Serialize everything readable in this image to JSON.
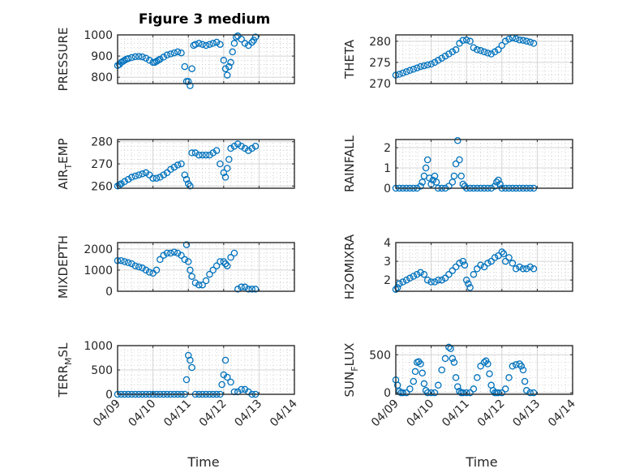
{
  "figure": {
    "title": "Figure 3 medium",
    "xlabel": "Time",
    "colors": {
      "marker": "#0072bd",
      "axes": "#262626",
      "grid": "#d4d4d4"
    }
  },
  "chart_data": [
    {
      "type": "scatter",
      "ylabel_main": "PRESSURE",
      "ylabel_sub": "",
      "ylabel_suffix": "",
      "ylim": [
        770,
        1000
      ],
      "yticks": [
        800,
        900,
        1000
      ],
      "ytick_labels": [
        "800",
        "900",
        "1000"
      ],
      "xlim": [
        0,
        5
      ],
      "xticks": [
        0,
        1,
        2,
        3,
        4,
        5
      ],
      "xtick_labels": [
        "04/09",
        "04/10",
        "04/11",
        "04/12",
        "04/13",
        "04/14"
      ],
      "show_xticklabels": false,
      "x": [
        0,
        0.05,
        0.1,
        0.15,
        0.2,
        0.25,
        0.3,
        0.4,
        0.5,
        0.6,
        0.7,
        0.8,
        0.9,
        1.0,
        1.05,
        1.1,
        1.15,
        1.2,
        1.3,
        1.4,
        1.5,
        1.6,
        1.7,
        1.8,
        1.9,
        1.95,
        2.0,
        2.05,
        2.1,
        2.15,
        2.2,
        2.3,
        2.4,
        2.5,
        2.6,
        2.7,
        2.8,
        2.9,
        3.0,
        3.05,
        3.1,
        3.15,
        3.2,
        3.25,
        3.3,
        3.35,
        3.4,
        3.5,
        3.6,
        3.7,
        3.8,
        3.85,
        3.9
      ],
      "y": [
        855,
        860,
        870,
        875,
        880,
        885,
        888,
        893,
        897,
        898,
        896,
        890,
        880,
        870,
        870,
        875,
        880,
        885,
        895,
        905,
        910,
        915,
        920,
        915,
        850,
        780,
        780,
        760,
        840,
        950,
        955,
        960,
        955,
        950,
        955,
        960,
        965,
        955,
        880,
        840,
        810,
        850,
        870,
        920,
        960,
        990,
        995,
        980,
        960,
        950,
        965,
        975,
        990
      ]
    },
    {
      "type": "scatter",
      "ylabel_main": "THETA",
      "ylabel_sub": "",
      "ylabel_suffix": "",
      "ylim": [
        270,
        281.5
      ],
      "yticks": [
        270,
        275,
        280
      ],
      "ytick_labels": [
        "270",
        "275",
        "280"
      ],
      "xlim": [
        0,
        5
      ],
      "xticks": [
        0,
        1,
        2,
        3,
        4,
        5
      ],
      "xtick_labels": [
        "04/09",
        "04/10",
        "04/11",
        "04/12",
        "04/13",
        "04/14"
      ],
      "show_xticklabels": false,
      "x": [
        0,
        0.1,
        0.2,
        0.3,
        0.4,
        0.5,
        0.6,
        0.7,
        0.8,
        0.9,
        1.0,
        1.1,
        1.2,
        1.3,
        1.4,
        1.5,
        1.6,
        1.7,
        1.8,
        1.9,
        2.0,
        2.1,
        2.2,
        2.3,
        2.4,
        2.5,
        2.6,
        2.7,
        2.8,
        2.9,
        3.0,
        3.1,
        3.2,
        3.3,
        3.4,
        3.5,
        3.6,
        3.7,
        3.8,
        3.9
      ],
      "y": [
        272,
        272.2,
        272.5,
        272.8,
        273.1,
        273.4,
        273.7,
        274,
        274.2,
        274.4,
        274.6,
        275,
        275.5,
        276,
        276.5,
        277,
        277.5,
        278,
        279.5,
        280.2,
        280.3,
        280,
        278.5,
        278,
        277.8,
        277.5,
        277.2,
        277,
        277.5,
        278,
        279,
        280,
        280.5,
        280.8,
        280.6,
        280.3,
        280.2,
        280,
        279.8,
        279.5
      ]
    },
    {
      "type": "scatter",
      "ylabel_main": "AIR",
      "ylabel_sub": "T",
      "ylabel_suffix": "EMP",
      "ylim": [
        259,
        281
      ],
      "yticks": [
        260,
        270,
        280
      ],
      "ytick_labels": [
        "260",
        "270",
        "280"
      ],
      "xlim": [
        0,
        5
      ],
      "xticks": [
        0,
        1,
        2,
        3,
        4,
        5
      ],
      "xtick_labels": [
        "04/09",
        "04/10",
        "04/11",
        "04/12",
        "04/13",
        "04/14"
      ],
      "show_xticklabels": false,
      "x": [
        0,
        0.05,
        0.1,
        0.2,
        0.3,
        0.4,
        0.5,
        0.6,
        0.7,
        0.8,
        0.9,
        1.0,
        1.1,
        1.2,
        1.3,
        1.4,
        1.5,
        1.6,
        1.7,
        1.8,
        1.9,
        1.95,
        2.0,
        2.05,
        2.1,
        2.2,
        2.3,
        2.4,
        2.5,
        2.6,
        2.7,
        2.8,
        2.9,
        3.0,
        3.05,
        3.1,
        3.15,
        3.2,
        3.3,
        3.4,
        3.5,
        3.6,
        3.7,
        3.8,
        3.9
      ],
      "y": [
        260,
        260.5,
        261,
        262,
        263,
        264,
        264.5,
        265,
        265.5,
        266,
        265,
        263.5,
        263.5,
        264,
        265,
        266,
        267.5,
        268.5,
        269.5,
        270,
        265,
        263,
        261,
        260,
        275,
        275,
        274,
        274,
        274,
        274,
        275,
        276,
        270,
        266,
        264,
        268,
        272,
        277,
        278,
        279,
        278,
        277,
        276,
        277,
        278
      ]
    },
    {
      "type": "scatter",
      "ylabel_main": "RAINFALL",
      "ylabel_sub": "",
      "ylabel_suffix": "",
      "ylim": [
        0,
        2.4
      ],
      "yticks": [
        0,
        1,
        2
      ],
      "ytick_labels": [
        "0",
        "1",
        "2"
      ],
      "xlim": [
        0,
        5
      ],
      "xticks": [
        0,
        1,
        2,
        3,
        4,
        5
      ],
      "xtick_labels": [
        "04/09",
        "04/10",
        "04/11",
        "04/12",
        "04/13",
        "04/14"
      ],
      "show_xticklabels": false,
      "x": [
        0,
        0.1,
        0.2,
        0.3,
        0.4,
        0.5,
        0.6,
        0.7,
        0.75,
        0.8,
        0.85,
        0.9,
        0.95,
        1.0,
        1.05,
        1.1,
        1.15,
        1.2,
        1.3,
        1.4,
        1.5,
        1.6,
        1.65,
        1.7,
        1.75,
        1.8,
        1.85,
        1.9,
        1.95,
        2.0,
        2.1,
        2.2,
        2.3,
        2.4,
        2.5,
        2.6,
        2.7,
        2.8,
        2.85,
        2.9,
        2.95,
        3.0,
        3.1,
        3.2,
        3.3,
        3.4,
        3.5,
        3.6,
        3.7,
        3.8,
        3.9
      ],
      "y": [
        0,
        0,
        0,
        0,
        0,
        0,
        0,
        0.1,
        0.3,
        0.6,
        1.0,
        1.4,
        0.5,
        0.2,
        0.4,
        0.6,
        0.3,
        0,
        0,
        0,
        0.1,
        0.3,
        0.6,
        1.2,
        2.35,
        1.4,
        0.6,
        0.2,
        0.1,
        0,
        0,
        0,
        0,
        0,
        0,
        0,
        0,
        0.1,
        0.3,
        0.4,
        0.2,
        0,
        0,
        0,
        0,
        0,
        0,
        0,
        0,
        0,
        0
      ]
    },
    {
      "type": "scatter",
      "ylabel_main": "MIXDEPTH",
      "ylabel_sub": "",
      "ylabel_suffix": "",
      "ylim": [
        0,
        2300
      ],
      "yticks": [
        0,
        1000,
        2000
      ],
      "ytick_labels": [
        "0",
        "1000",
        "2000"
      ],
      "xlim": [
        0,
        5
      ],
      "xticks": [
        0,
        1,
        2,
        3,
        4,
        5
      ],
      "xtick_labels": [
        "04/09",
        "04/10",
        "04/11",
        "04/12",
        "04/13",
        "04/14"
      ],
      "show_xticklabels": false,
      "x": [
        0,
        0.1,
        0.2,
        0.3,
        0.4,
        0.5,
        0.6,
        0.7,
        0.8,
        0.9,
        1.0,
        1.1,
        1.2,
        1.3,
        1.4,
        1.5,
        1.6,
        1.7,
        1.8,
        1.9,
        1.95,
        2.0,
        2.05,
        2.1,
        2.2,
        2.3,
        2.4,
        2.5,
        2.6,
        2.7,
        2.8,
        2.9,
        3.0,
        3.05,
        3.1,
        3.2,
        3.3,
        3.4,
        3.5,
        3.6,
        3.7,
        3.8,
        3.9
      ],
      "y": [
        1450,
        1450,
        1400,
        1350,
        1300,
        1200,
        1150,
        1100,
        1000,
        900,
        850,
        1000,
        1500,
        1700,
        1800,
        1800,
        1850,
        1800,
        1700,
        1500,
        2200,
        1400,
        1000,
        700,
        400,
        300,
        300,
        500,
        800,
        1000,
        1200,
        1400,
        1400,
        1300,
        1200,
        1600,
        1800,
        100,
        200,
        200,
        100,
        100,
        100
      ]
    },
    {
      "type": "scatter",
      "ylabel_main": "H2OMIXRA",
      "ylabel_sub": "",
      "ylabel_suffix": "",
      "ylim": [
        1.4,
        4
      ],
      "yticks": [
        2,
        3,
        4
      ],
      "ytick_labels": [
        "2",
        "3",
        "4"
      ],
      "xlim": [
        0,
        5
      ],
      "xticks": [
        0,
        1,
        2,
        3,
        4,
        5
      ],
      "xtick_labels": [
        "04/09",
        "04/10",
        "04/11",
        "04/12",
        "04/13",
        "04/14"
      ],
      "show_xticklabels": false,
      "x": [
        0,
        0.05,
        0.1,
        0.2,
        0.3,
        0.4,
        0.5,
        0.6,
        0.7,
        0.8,
        0.9,
        1.0,
        1.1,
        1.2,
        1.3,
        1.4,
        1.5,
        1.6,
        1.7,
        1.8,
        1.9,
        1.95,
        2.0,
        2.05,
        2.1,
        2.2,
        2.3,
        2.4,
        2.5,
        2.6,
        2.7,
        2.8,
        2.9,
        3.0,
        3.05,
        3.1,
        3.2,
        3.3,
        3.4,
        3.5,
        3.6,
        3.7,
        3.8,
        3.9
      ],
      "y": [
        1.5,
        1.6,
        1.8,
        1.9,
        2.0,
        2.1,
        2.2,
        2.3,
        2.4,
        2.3,
        2.0,
        1.9,
        1.9,
        2.0,
        2.0,
        2.1,
        2.3,
        2.5,
        2.7,
        2.9,
        3.0,
        2.8,
        2.0,
        1.8,
        1.6,
        2.3,
        2.6,
        2.8,
        2.7,
        2.9,
        3.0,
        3.2,
        3.3,
        3.5,
        3.4,
        3.0,
        3.2,
        2.9,
        2.6,
        2.7,
        2.6,
        2.6,
        2.7,
        2.6
      ]
    },
    {
      "type": "scatter",
      "ylabel_main": "TERR",
      "ylabel_sub": "M",
      "ylabel_suffix": "SL",
      "ylim": [
        0,
        1000
      ],
      "yticks": [
        0,
        500,
        1000
      ],
      "ytick_labels": [
        "0",
        "500",
        "1000"
      ],
      "xlim": [
        0,
        5
      ],
      "xticks": [
        0,
        1,
        2,
        3,
        4,
        5
      ],
      "xtick_labels": [
        "04/09",
        "04/10",
        "04/11",
        "04/12",
        "04/13",
        "04/14"
      ],
      "show_xticklabels": true,
      "x": [
        0,
        0.1,
        0.2,
        0.3,
        0.4,
        0.5,
        0.6,
        0.7,
        0.8,
        0.9,
        1.0,
        1.1,
        1.2,
        1.3,
        1.4,
        1.5,
        1.6,
        1.7,
        1.8,
        1.9,
        1.95,
        2.0,
        2.05,
        2.1,
        2.2,
        2.3,
        2.4,
        2.5,
        2.6,
        2.7,
        2.8,
        2.9,
        2.95,
        3.0,
        3.05,
        3.1,
        3.2,
        3.3,
        3.4,
        3.5,
        3.6,
        3.7,
        3.8,
        3.9
      ],
      "y": [
        0,
        0,
        0,
        0,
        0,
        0,
        0,
        0,
        0,
        0,
        0,
        0,
        0,
        0,
        0,
        0,
        0,
        0,
        0,
        0,
        300,
        800,
        700,
        550,
        0,
        0,
        0,
        0,
        0,
        0,
        0,
        0,
        200,
        400,
        700,
        350,
        250,
        50,
        50,
        100,
        100,
        50,
        0,
        0
      ]
    },
    {
      "type": "scatter",
      "ylabel_main": "SUN",
      "ylabel_sub": "F",
      "ylabel_suffix": "LUX",
      "ylim": [
        -20,
        620
      ],
      "yticks": [
        0,
        500
      ],
      "ytick_labels": [
        "0",
        "500"
      ],
      "xlim": [
        0,
        5
      ],
      "xticks": [
        0,
        1,
        2,
        3,
        4,
        5
      ],
      "xtick_labels": [
        "04/09",
        "04/10",
        "04/11",
        "04/12",
        "04/13",
        "04/14"
      ],
      "show_xticklabels": true,
      "x": [
        0,
        0.05,
        0.1,
        0.15,
        0.2,
        0.3,
        0.4,
        0.5,
        0.55,
        0.6,
        0.65,
        0.7,
        0.75,
        0.8,
        0.85,
        0.9,
        1.0,
        1.1,
        1.2,
        1.3,
        1.4,
        1.5,
        1.55,
        1.6,
        1.65,
        1.7,
        1.75,
        1.8,
        1.85,
        1.9,
        2.0,
        2.1,
        2.2,
        2.3,
        2.4,
        2.5,
        2.55,
        2.6,
        2.65,
        2.7,
        2.75,
        2.8,
        2.85,
        2.9,
        3.0,
        3.1,
        3.2,
        3.3,
        3.4,
        3.5,
        3.55,
        3.6,
        3.65,
        3.7,
        3.8,
        3.9
      ],
      "y": [
        170,
        100,
        20,
        0,
        0,
        0,
        50,
        150,
        280,
        400,
        410,
        380,
        260,
        120,
        30,
        0,
        0,
        0,
        100,
        300,
        450,
        600,
        580,
        450,
        400,
        200,
        80,
        20,
        0,
        0,
        0,
        0,
        50,
        200,
        350,
        400,
        420,
        380,
        250,
        100,
        30,
        0,
        0,
        0,
        0,
        50,
        200,
        350,
        370,
        380,
        350,
        300,
        150,
        30,
        0,
        0
      ]
    }
  ]
}
